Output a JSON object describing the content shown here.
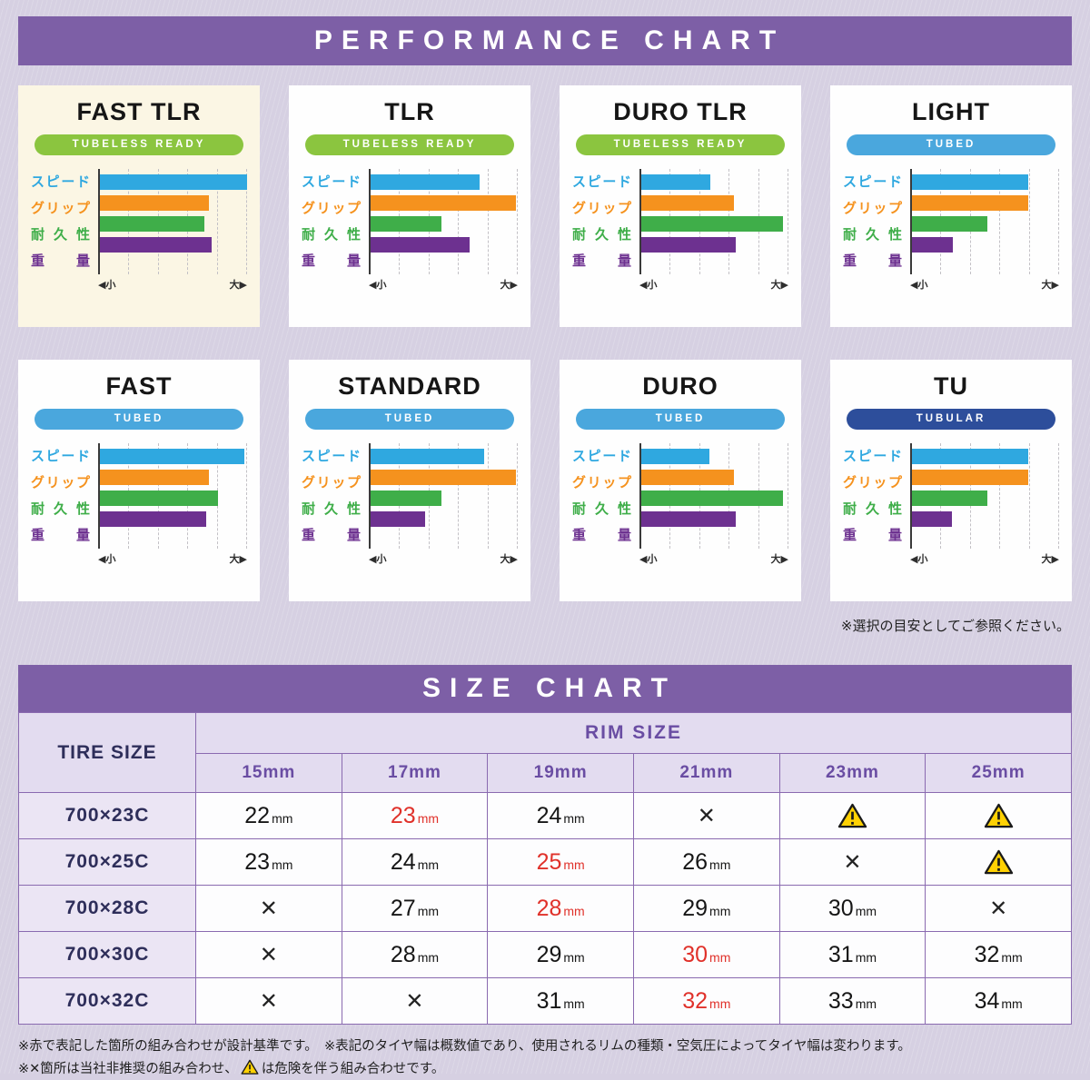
{
  "headers": {
    "performance": "PERFORMANCE CHART",
    "size": "SIZE CHART"
  },
  "notes": {
    "selection": "※選択の目安としてご参照ください。",
    "footnote1": "※赤で表記した箇所の組み合わせが設計基準です。　※表記のタイヤ幅は概数値であり、使用されるリムの種類・空気圧によってタイヤ幅は変わります。",
    "footnote2_pre": "※✕箇所は当社非推奨の組み合わせ、",
    "footnote2_post": "は危険を伴う組み合わせです。"
  },
  "colors": {
    "banner_purple": "#7d5fa6",
    "page_background": "#d6d0e2",
    "highlight_card_background": "#fbf6e4",
    "speed": "#2fa8e0",
    "grip": "#f5921e",
    "durability": "#3fae49",
    "weight": "#6d3190",
    "tubeless_ready_badge": "#8bc53f",
    "tubed_badge": "#4aa7dd",
    "tubular_badge": "#2d4e9b",
    "red_value": "#e0312a",
    "warning_yellow": "#ffd103"
  },
  "chart_data": {
    "type": "bar",
    "orientation": "horizontal",
    "metrics": [
      "スピード",
      "グリップ",
      "耐久性",
      "重量"
    ],
    "metric_keys": [
      "speed",
      "grip",
      "durability",
      "weight"
    ],
    "metric_colors": [
      "#2fa8e0",
      "#f5921e",
      "#3fae49",
      "#6d3190"
    ],
    "scale": {
      "min_label": "◀小",
      "max_label": "大▶",
      "range": [
        0,
        100
      ],
      "grid": "dashed"
    },
    "cards": [
      {
        "title": "FAST TLR",
        "badge": "TUBELESS READY",
        "badge_color": "#8bc53f",
        "highlighted": true,
        "values": [
          100,
          74,
          71,
          76
        ]
      },
      {
        "title": "TLR",
        "badge": "TUBELESS READY",
        "badge_color": "#8bc53f",
        "highlighted": false,
        "values": [
          74,
          99,
          48,
          67
        ]
      },
      {
        "title": "DURO TLR",
        "badge": "TUBELESS READY",
        "badge_color": "#8bc53f",
        "highlighted": false,
        "values": [
          47,
          63,
          96,
          64
        ]
      },
      {
        "title": "LIGHT",
        "badge": "TUBED",
        "badge_color": "#4aa7dd",
        "highlighted": false,
        "values": [
          79,
          79,
          51,
          28
        ]
      },
      {
        "title": "FAST",
        "badge": "TUBED",
        "badge_color": "#4aa7dd",
        "highlighted": false,
        "values": [
          98,
          74,
          80,
          72
        ]
      },
      {
        "title": "STANDARD",
        "badge": "TUBED",
        "badge_color": "#4aa7dd",
        "highlighted": false,
        "values": [
          77,
          99,
          48,
          37
        ]
      },
      {
        "title": "DURO",
        "badge": "TUBED",
        "badge_color": "#4aa7dd",
        "highlighted": false,
        "values": [
          46,
          63,
          96,
          64
        ]
      },
      {
        "title": "TU",
        "badge": "TUBULAR",
        "badge_color": "#2d4e9b",
        "highlighted": false,
        "values": [
          79,
          79,
          51,
          27
        ]
      }
    ]
  },
  "size_chart": {
    "title": "SIZE CHART",
    "tire_size_header": "TIRE SIZE",
    "rim_size_header": "RIM SIZE",
    "rim_columns": [
      "15mm",
      "17mm",
      "19mm",
      "21mm",
      "23mm",
      "25mm"
    ],
    "x_symbol": "✕",
    "rows": [
      {
        "tire": "700×23C",
        "cells": [
          {
            "type": "value",
            "num": "22",
            "unit": "mm"
          },
          {
            "type": "value",
            "num": "23",
            "unit": "mm",
            "red": true
          },
          {
            "type": "value",
            "num": "24",
            "unit": "mm"
          },
          {
            "type": "x"
          },
          {
            "type": "warn"
          },
          {
            "type": "warn"
          }
        ]
      },
      {
        "tire": "700×25C",
        "cells": [
          {
            "type": "value",
            "num": "23",
            "unit": "mm"
          },
          {
            "type": "value",
            "num": "24",
            "unit": "mm"
          },
          {
            "type": "value",
            "num": "25",
            "unit": "mm",
            "red": true
          },
          {
            "type": "value",
            "num": "26",
            "unit": "mm"
          },
          {
            "type": "x"
          },
          {
            "type": "warn"
          }
        ]
      },
      {
        "tire": "700×28C",
        "cells": [
          {
            "type": "x"
          },
          {
            "type": "value",
            "num": "27",
            "unit": "mm"
          },
          {
            "type": "value",
            "num": "28",
            "unit": "mm",
            "red": true
          },
          {
            "type": "value",
            "num": "29",
            "unit": "mm"
          },
          {
            "type": "value",
            "num": "30",
            "unit": "mm"
          },
          {
            "type": "x"
          }
        ]
      },
      {
        "tire": "700×30C",
        "cells": [
          {
            "type": "x"
          },
          {
            "type": "value",
            "num": "28",
            "unit": "mm"
          },
          {
            "type": "value",
            "num": "29",
            "unit": "mm"
          },
          {
            "type": "value",
            "num": "30",
            "unit": "mm",
            "red": true
          },
          {
            "type": "value",
            "num": "31",
            "unit": "mm"
          },
          {
            "type": "value",
            "num": "32",
            "unit": "mm"
          }
        ]
      },
      {
        "tire": "700×32C",
        "cells": [
          {
            "type": "x"
          },
          {
            "type": "x"
          },
          {
            "type": "value",
            "num": "31",
            "unit": "mm"
          },
          {
            "type": "value",
            "num": "32",
            "unit": "mm",
            "red": true
          },
          {
            "type": "value",
            "num": "33",
            "unit": "mm"
          },
          {
            "type": "value",
            "num": "34",
            "unit": "mm"
          }
        ]
      }
    ]
  }
}
